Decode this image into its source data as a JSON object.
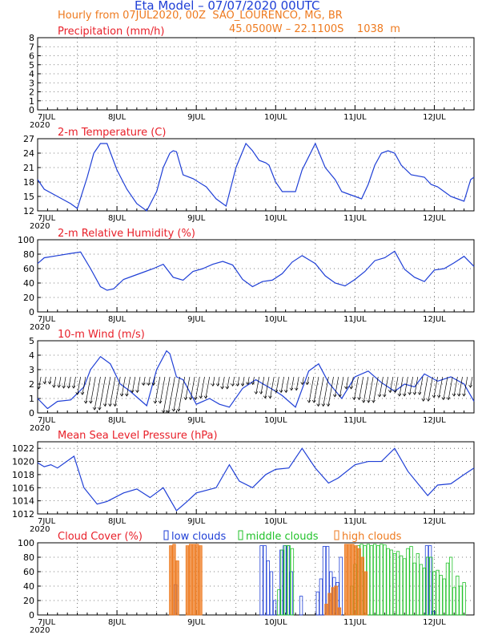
{
  "header": {
    "title": "Eta Model – 07/07/2020 00UTC",
    "subtitle": "Hourly from 07JUL2020, 00Z  SAO_LOURENCO, MG, BR",
    "location": "45.0500W – 22.1100S    1038  m"
  },
  "colors": {
    "line": "#1f3fd6",
    "title_red": "#e8202a",
    "orange": "#ee7a1f",
    "green": "#22c22a",
    "wind_arrow": "#000000",
    "grid": "#555555"
  },
  "x_axis": {
    "labels": [
      "7JUL",
      "8JUL",
      "9JUL",
      "10JUL",
      "11JUL",
      "12JUL"
    ],
    "year_label": "2020",
    "range_hours": [
      0,
      132
    ]
  },
  "chart_data": [
    {
      "type": "bar",
      "title": "Precipitation (mm/h)",
      "ylim": [
        0,
        8
      ],
      "yticks": [
        0,
        1,
        2,
        3,
        4,
        5,
        6,
        7,
        8
      ],
      "x": [],
      "values": []
    },
    {
      "type": "line",
      "title": "2-m Temperature (C)",
      "ylim": [
        12,
        27
      ],
      "yticks": [
        12,
        15,
        18,
        21,
        24,
        27
      ],
      "x": [
        0,
        2,
        6,
        10,
        12,
        15,
        17,
        19,
        21,
        24,
        27,
        30,
        33,
        36,
        38,
        40,
        41,
        42,
        44,
        47,
        51,
        54,
        57,
        60,
        63,
        65,
        67,
        69,
        70,
        72,
        74,
        78,
        80,
        84,
        87,
        90,
        92,
        94,
        96,
        98,
        100,
        102,
        104,
        106,
        108,
        110,
        113,
        117,
        119,
        121,
        123,
        125,
        127,
        129,
        131,
        132
      ],
      "values": [
        18.5,
        16.5,
        15.0,
        13.5,
        12.5,
        19.0,
        24.0,
        26.0,
        26.0,
        20.5,
        16.5,
        13.5,
        12.0,
        16.0,
        21.0,
        24.0,
        24.5,
        24.3,
        19.5,
        18.7,
        17.0,
        14.5,
        13.0,
        21.0,
        26.0,
        24.5,
        22.5,
        22.0,
        21.5,
        18.0,
        16.0,
        16.0,
        20.5,
        26.0,
        21.0,
        18.5,
        16.0,
        15.5,
        15.0,
        14.5,
        17.5,
        21.5,
        24.0,
        24.5,
        24.0,
        21.5,
        19.5,
        19.0,
        17.5,
        17.0,
        16.0,
        15.0,
        14.5,
        14.0,
        18.5,
        19.0
      ]
    },
    {
      "type": "line",
      "title": "2-m Relative Humidity (%)",
      "ylim": [
        0,
        100
      ],
      "yticks": [
        0,
        20,
        40,
        60,
        80,
        100
      ],
      "x": [
        0,
        2,
        6,
        10,
        13,
        16,
        19,
        21,
        23,
        26,
        29,
        32,
        35,
        38,
        41,
        44,
        47,
        50,
        53,
        56,
        59,
        62,
        65,
        68,
        71,
        74,
        77,
        80,
        84,
        87,
        90,
        93,
        96,
        99,
        102,
        105,
        108,
        111,
        114,
        117,
        120,
        123,
        126,
        129,
        132
      ],
      "values": [
        67,
        75,
        78,
        81,
        83,
        60,
        35,
        30,
        32,
        45,
        50,
        55,
        60,
        66,
        48,
        44,
        56,
        60,
        66,
        70,
        65,
        45,
        35,
        42,
        44,
        53,
        69,
        78,
        67,
        50,
        40,
        36,
        45,
        56,
        71,
        75,
        84,
        59,
        48,
        42,
        58,
        60,
        68,
        77,
        63
      ]
    },
    {
      "type": "line",
      "title": "10-m Wind (m/s)",
      "ylim": [
        0,
        5
      ],
      "yticks": [
        0,
        1,
        2,
        3,
        4,
        5
      ],
      "x": [
        0,
        3,
        6,
        10,
        14,
        16,
        19,
        22,
        25,
        28,
        33,
        36,
        39,
        40,
        42,
        44,
        48,
        52,
        55,
        58,
        62,
        66,
        72,
        74,
        78,
        82,
        85,
        88,
        92,
        96,
        100,
        104,
        108,
        111,
        114,
        117,
        121,
        125,
        129,
        132
      ],
      "values": [
        1.0,
        0.3,
        0.8,
        0.9,
        1.8,
        3.0,
        3.9,
        3.4,
        2.0,
        1.5,
        0.5,
        3.0,
        4.3,
        4.1,
        2.5,
        2.3,
        0.6,
        1.0,
        0.6,
        0.4,
        1.7,
        2.3,
        1.5,
        1.2,
        0.4,
        2.9,
        3.4,
        2.1,
        1.0,
        2.5,
        2.9,
        2.1,
        1.5,
        2.0,
        1.8,
        2.7,
        2.2,
        2.5,
        2.0,
        0.8
      ],
      "wind_arrow_direction": "from south-southeast"
    },
    {
      "type": "line",
      "title": "Mean Sea Level Pressure (hPa)",
      "ylim": [
        1012,
        1023
      ],
      "yticks": [
        1012,
        1014,
        1016,
        1018,
        1020,
        1022
      ],
      "x": [
        0,
        2,
        4,
        6,
        11,
        14,
        18,
        21,
        26,
        30,
        34,
        38,
        42,
        45,
        48,
        54,
        58,
        61,
        65,
        69,
        72,
        76,
        80,
        84,
        88,
        91,
        96,
        100,
        104,
        108,
        112,
        118,
        121,
        125,
        129,
        132
      ],
      "values": [
        1019.8,
        1019.2,
        1019.5,
        1019.0,
        1020.8,
        1016.0,
        1013.5,
        1013.9,
        1015.2,
        1015.8,
        1014.5,
        1016.0,
        1012.5,
        1013.8,
        1015.2,
        1016.0,
        1019.5,
        1017.0,
        1016.0,
        1018.0,
        1018.8,
        1019.0,
        1022.0,
        1019.0,
        1016.7,
        1017.5,
        1019.5,
        1020.0,
        1020.0,
        1022.0,
        1018.5,
        1014.8,
        1016.4,
        1016.6,
        1018.0,
        1019.0
      ]
    },
    {
      "type": "bar",
      "title": "Cloud Cover (%)",
      "ylim": [
        0,
        100
      ],
      "yticks": [
        0,
        20,
        40,
        60,
        80,
        100
      ],
      "legend": [
        "low clouds",
        "middle clouds",
        "high clouds"
      ],
      "series": [
        {
          "name": "low clouds",
          "x": [
            42,
            68,
            69,
            70,
            71,
            72,
            74,
            75,
            76,
            77,
            80,
            85,
            86,
            87,
            88,
            89,
            90,
            91,
            92,
            118,
            119,
            120
          ],
          "values": [
            42,
            96,
            96,
            75,
            60,
            20,
            90,
            96,
            96,
            60,
            26,
            32,
            50,
            95,
            95,
            60,
            52,
            45,
            80,
            96,
            96,
            5
          ]
        },
        {
          "name": "middle clouds",
          "x": [
            73,
            74,
            75,
            76,
            77,
            95,
            96,
            97,
            98,
            99,
            100,
            101,
            102,
            103,
            104,
            105,
            106,
            107,
            108,
            109,
            110,
            111,
            112,
            113,
            114,
            115,
            116,
            117,
            118,
            119,
            120,
            121,
            122,
            123,
            124,
            125,
            126,
            127,
            128,
            129
          ],
          "values": [
            35,
            90,
            96,
            96,
            92,
            40,
            70,
            96,
            98,
            96,
            98,
            96,
            98,
            96,
            98,
            97,
            92,
            90,
            85,
            88,
            82,
            78,
            92,
            95,
            72,
            85,
            70,
            65,
            80,
            80,
            60,
            62,
            55,
            50,
            72,
            80,
            38,
            54,
            40,
            45
          ]
        },
        {
          "name": "high clouds",
          "x": [
            40,
            41,
            42,
            45,
            46,
            47,
            48,
            49,
            87,
            88,
            89,
            90,
            91,
            93,
            94,
            95,
            96,
            97,
            98,
            99
          ],
          "values": [
            96,
            98,
            75,
            96,
            98,
            98,
            98,
            96,
            15,
            30,
            38,
            40,
            10,
            98,
            98,
            98,
            96,
            92,
            80,
            60
          ]
        }
      ]
    }
  ]
}
